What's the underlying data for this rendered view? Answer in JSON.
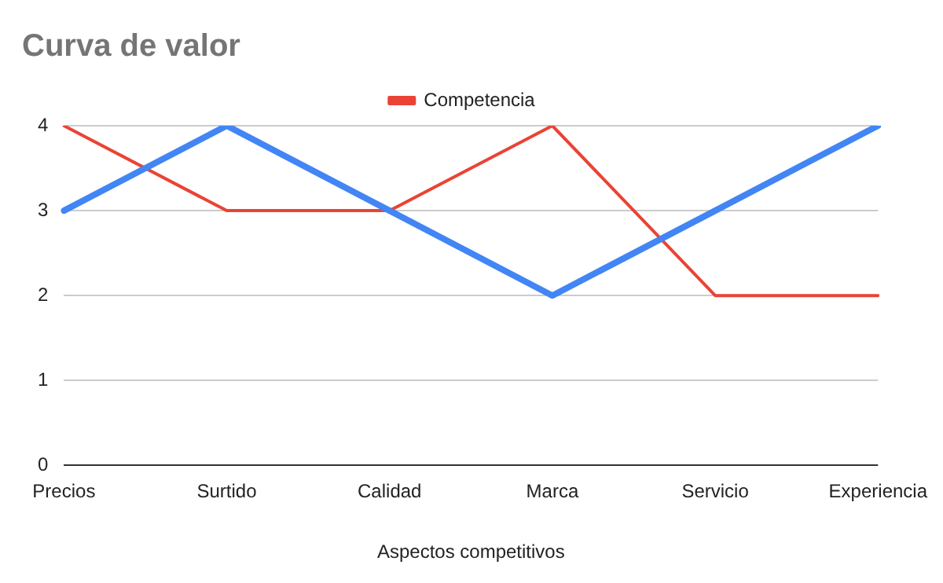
{
  "chart_data": {
    "type": "line",
    "title": "Curva de valor",
    "xlabel": "Aspectos competitivos",
    "categories": [
      "Precios",
      "Surtido",
      "Calidad",
      "Marca",
      "Servicio",
      "Experiencia"
    ],
    "series": [
      {
        "color": "#4285f4",
        "values": [
          3,
          4,
          3,
          2,
          3,
          4
        ]
      },
      {
        "name": "Competencia",
        "color": "#ea4335",
        "values": [
          4,
          3,
          3,
          4,
          2,
          2
        ]
      }
    ],
    "ylim": [
      0,
      4
    ],
    "yticks": [
      0,
      1,
      2,
      3,
      4
    ],
    "grid": "y",
    "legend": "top",
    "marker": "none",
    "line_style": "solid"
  }
}
